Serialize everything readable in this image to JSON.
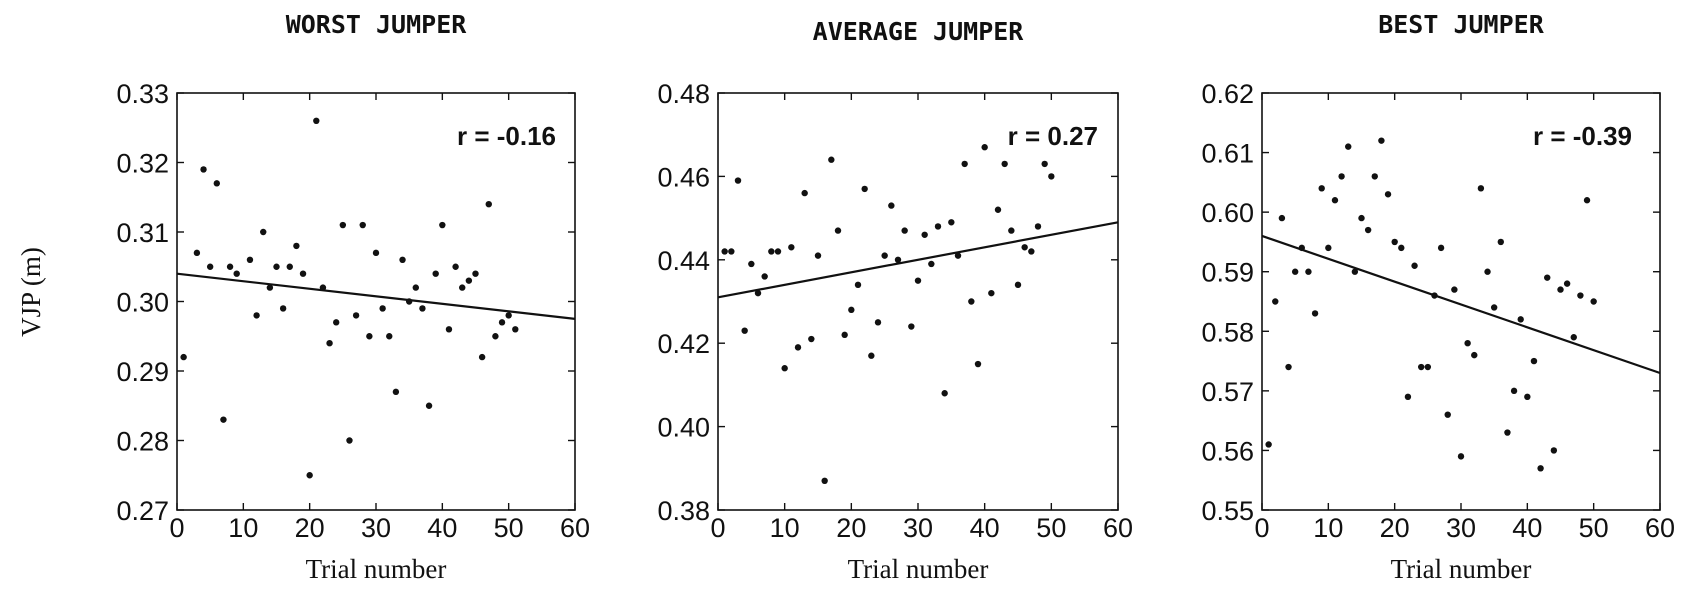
{
  "figure": {
    "shared_ylabel": "VJP (m)"
  },
  "chart_data": [
    {
      "type": "scatter",
      "title": "WORST JUMPER",
      "xlabel": "Trial number",
      "ylabel": "VJP (m)",
      "xlim": [
        0,
        60
      ],
      "ylim": [
        0.27,
        0.33
      ],
      "xticks": [
        "0",
        "10",
        "20",
        "30",
        "40",
        "50",
        "60"
      ],
      "yticks": [
        "0.27",
        "0.28",
        "0.29",
        "0.30",
        "0.31",
        "0.32",
        "0.33"
      ],
      "annotation": "r = -0.16",
      "fit_line": {
        "x": [
          0,
          60
        ],
        "y": [
          0.304,
          0.2975
        ]
      },
      "x": [
        1,
        3,
        4,
        5,
        6,
        7,
        8,
        9,
        11,
        12,
        13,
        14,
        15,
        16,
        17,
        18,
        19,
        20,
        21,
        22,
        23,
        24,
        25,
        26,
        27,
        28,
        29,
        30,
        31,
        32,
        33,
        34,
        35,
        36,
        37,
        38,
        39,
        40,
        41,
        42,
        43,
        44,
        45,
        46,
        47,
        48,
        49,
        50,
        51
      ],
      "y": [
        0.292,
        0.307,
        0.319,
        0.305,
        0.317,
        0.283,
        0.305,
        0.304,
        0.306,
        0.298,
        0.31,
        0.302,
        0.305,
        0.299,
        0.305,
        0.308,
        0.304,
        0.275,
        0.326,
        0.302,
        0.294,
        0.297,
        0.311,
        0.28,
        0.298,
        0.311,
        0.295,
        0.307,
        0.299,
        0.295,
        0.287,
        0.306,
        0.3,
        0.302,
        0.299,
        0.285,
        0.304,
        0.311,
        0.296,
        0.305,
        0.302,
        0.303,
        0.304,
        0.292,
        0.314,
        0.295,
        0.297,
        0.298,
        0.296
      ]
    },
    {
      "type": "scatter",
      "title": "AVERAGE JUMPER",
      "xlabel": "Trial number",
      "ylabel": "",
      "xlim": [
        0,
        60
      ],
      "ylim": [
        0.38,
        0.48
      ],
      "xticks": [
        "0",
        "10",
        "20",
        "30",
        "40",
        "50",
        "60"
      ],
      "yticks": [
        "0.38",
        "0.40",
        "0.42",
        "0.44",
        "0.46",
        "0.48"
      ],
      "annotation": "r = 0.27",
      "fit_line": {
        "x": [
          0,
          60
        ],
        "y": [
          0.431,
          0.449
        ]
      },
      "x": [
        1,
        2,
        3,
        4,
        5,
        6,
        7,
        8,
        9,
        10,
        11,
        12,
        13,
        14,
        15,
        16,
        17,
        18,
        19,
        20,
        21,
        22,
        23,
        24,
        25,
        26,
        27,
        28,
        29,
        30,
        31,
        32,
        33,
        34,
        35,
        36,
        37,
        38,
        39,
        40,
        41,
        42,
        43,
        44,
        45,
        46,
        47,
        48,
        49,
        50
      ],
      "y": [
        0.442,
        0.442,
        0.459,
        0.423,
        0.439,
        0.432,
        0.436,
        0.442,
        0.442,
        0.414,
        0.443,
        0.419,
        0.456,
        0.421,
        0.441,
        0.387,
        0.464,
        0.447,
        0.422,
        0.428,
        0.434,
        0.457,
        0.417,
        0.425,
        0.441,
        0.453,
        0.44,
        0.447,
        0.424,
        0.435,
        0.446,
        0.439,
        0.448,
        0.408,
        0.449,
        0.441,
        0.463,
        0.43,
        0.415,
        0.467,
        0.432,
        0.452,
        0.463,
        0.447,
        0.434,
        0.443,
        0.442,
        0.448,
        0.463,
        0.46
      ]
    },
    {
      "type": "scatter",
      "title": "BEST JUMPER",
      "xlabel": "Trial number",
      "ylabel": "",
      "xlim": [
        0,
        60
      ],
      "ylim": [
        0.55,
        0.62
      ],
      "xticks": [
        "0",
        "10",
        "20",
        "30",
        "40",
        "50",
        "60"
      ],
      "yticks": [
        "0.55",
        "0.56",
        "0.57",
        "0.58",
        "0.59",
        "0.60",
        "0.61",
        "0.62"
      ],
      "annotation": "r = -0.39",
      "fit_line": {
        "x": [
          0,
          60
        ],
        "y": [
          0.596,
          0.573
        ]
      },
      "x": [
        1,
        2,
        3,
        4,
        5,
        6,
        7,
        8,
        9,
        10,
        11,
        12,
        13,
        14,
        15,
        16,
        17,
        18,
        19,
        20,
        21,
        22,
        23,
        24,
        25,
        26,
        27,
        28,
        29,
        30,
        31,
        32,
        33,
        34,
        35,
        36,
        37,
        38,
        39,
        40,
        41,
        42,
        43,
        44,
        45,
        46,
        47,
        48,
        49,
        50
      ],
      "y": [
        0.561,
        0.585,
        0.599,
        0.574,
        0.59,
        0.594,
        0.59,
        0.583,
        0.604,
        0.594,
        0.602,
        0.606,
        0.611,
        0.59,
        0.599,
        0.597,
        0.606,
        0.612,
        0.603,
        0.595,
        0.594,
        0.569,
        0.591,
        0.574,
        0.574,
        0.586,
        0.594,
        0.566,
        0.587,
        0.559,
        0.578,
        0.576,
        0.604,
        0.59,
        0.584,
        0.595,
        0.563,
        0.57,
        0.582,
        0.569,
        0.575,
        0.557,
        0.589,
        0.56,
        0.587,
        0.588,
        0.579,
        0.586,
        0.602,
        0.585
      ]
    }
  ]
}
